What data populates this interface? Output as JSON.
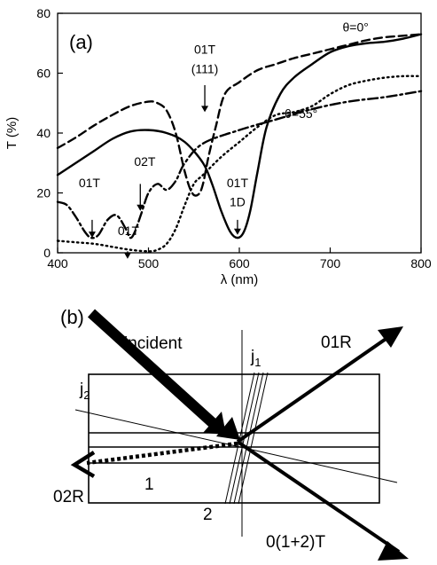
{
  "chart_data": {
    "type": "line",
    "panel_label": "(a)",
    "xlabel": "λ (nm)",
    "ylabel": "T (%)",
    "xlim": [
      400,
      800
    ],
    "ylim": [
      0,
      80
    ],
    "x_ticks": [
      400,
      500,
      600,
      700,
      800
    ],
    "y_ticks": [
      0,
      20,
      40,
      60,
      80
    ],
    "grid": false,
    "series": [
      {
        "style": "solid",
        "x": [
          400,
          420,
          440,
          460,
          480,
          500,
          520,
          540,
          560,
          570,
          580,
          590,
          598,
          605,
          612,
          620,
          630,
          645,
          660,
          680,
          700,
          720,
          740,
          760,
          780,
          800
        ],
        "y": [
          26,
          30,
          34,
          38,
          40.5,
          41,
          40,
          37,
          30,
          23,
          14,
          7,
          5,
          7,
          14,
          27,
          42,
          53,
          58.5,
          63,
          67,
          69,
          70,
          70.5,
          71.5,
          73
        ]
      },
      {
        "style": "dashed",
        "x": [
          400,
          420,
          440,
          460,
          480,
          500,
          510,
          520,
          530,
          540,
          548,
          555,
          560,
          566,
          574,
          584,
          600,
          620,
          640,
          660,
          680,
          700,
          720,
          740,
          760,
          780,
          800
        ],
        "y": [
          35,
          38.5,
          42.5,
          46,
          49,
          50.5,
          50,
          47.5,
          40,
          27,
          20,
          19.5,
          23,
          32,
          42,
          53,
          57,
          61,
          63,
          65,
          66.5,
          68,
          69.5,
          71,
          72,
          72.5,
          73
        ]
      },
      {
        "style": "dash-dot",
        "x": [
          400,
          410,
          420,
          430,
          437,
          445,
          455,
          465,
          475,
          480,
          485,
          492,
          500,
          510,
          520,
          530,
          540,
          560,
          600,
          640,
          680,
          720,
          760,
          800
        ],
        "y": [
          17,
          16,
          12,
          7,
          5,
          6,
          11,
          12.5,
          8,
          5,
          7,
          13,
          20,
          23,
          21,
          24,
          30,
          36.5,
          41,
          44.5,
          48,
          50.5,
          52,
          54
        ]
      },
      {
        "style": "dotted",
        "x": [
          400,
          420,
          440,
          460,
          480,
          500,
          510,
          520,
          530,
          540,
          550,
          560,
          580,
          600,
          620,
          640,
          660,
          680,
          700,
          720,
          740,
          760,
          780,
          800
        ],
        "y": [
          4,
          3.5,
          3,
          2,
          1,
          0.5,
          1,
          3,
          8,
          16,
          23,
          26,
          32,
          37,
          42,
          46,
          47,
          49,
          53,
          56,
          57.5,
          58.5,
          59,
          59
        ]
      }
    ],
    "annotations": [
      {
        "text": "θ=0°",
        "x": 728,
        "y": 74
      },
      {
        "text": "θ=55°",
        "x": 668,
        "y": 45
      },
      {
        "text": "01T",
        "x": 562,
        "y": 66.5
      },
      {
        "text": "(111)",
        "x": 562,
        "y": 60
      },
      {
        "text": "02T",
        "x": 496,
        "y": 29
      },
      {
        "text": "01T",
        "x": 435,
        "y": 22
      },
      {
        "text": "01T",
        "x": 478,
        "y": 6
      },
      {
        "text": "01T",
        "x": 598,
        "y": 22
      },
      {
        "text": "1D",
        "x": 598,
        "y": 15.5
      }
    ],
    "arrows": [
      {
        "x": 562,
        "y_from": 56,
        "y_to": 47
      },
      {
        "x": 491,
        "y_from": 23,
        "y_to": 14
      },
      {
        "x": 438,
        "y_from": 11,
        "y_to": 5
      },
      {
        "x": 477,
        "y_from": 0.5,
        "y_to": -2
      },
      {
        "x": 598,
        "y_from": 11,
        "y_to": 6
      }
    ]
  },
  "diagram": {
    "panel_label": "(b)",
    "labels": {
      "incident": "incident",
      "j1": "j",
      "j1_sub": "1",
      "j2": "j",
      "j2_sub": "2",
      "r01": "01R",
      "r02": "02R",
      "layer1": "1",
      "layer2": "2",
      "transmitted": "0(1+2)T"
    }
  }
}
